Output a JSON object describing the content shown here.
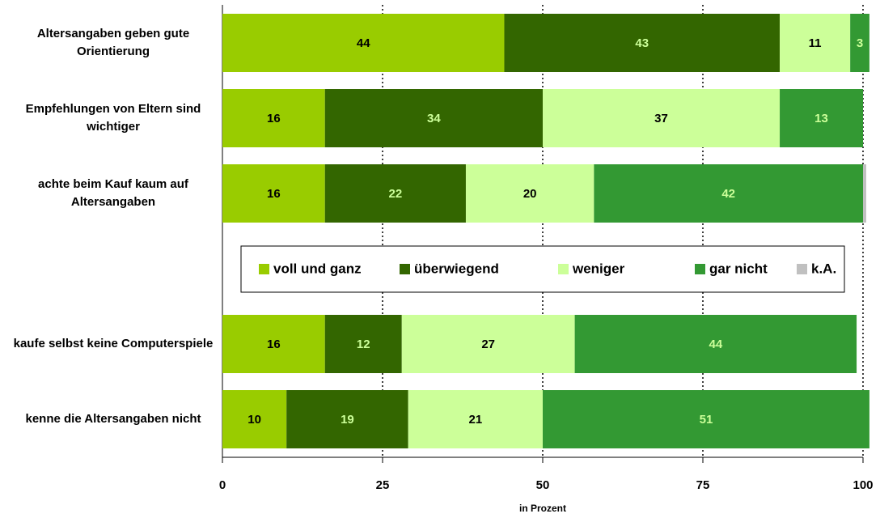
{
  "chart_data": {
    "type": "stacked_bar_horizontal",
    "categories": [
      "Altersangaben geben gute Orientierung",
      "Empfehlungen von  Eltern sind wichtiger",
      "achte beim Kauf kaum auf Altersangaben",
      "kaufe selbst keine Computerspiele",
      "kenne die Altersangaben nicht"
    ],
    "series": [
      {
        "name": "voll und ganz",
        "color": "#99cc00",
        "label_color": "#000000",
        "values": [
          44,
          16,
          16,
          16,
          10
        ]
      },
      {
        "name": "überwiegend",
        "color": "#336600",
        "label_color": "#ccff99",
        "values": [
          43,
          34,
          22,
          12,
          19
        ]
      },
      {
        "name": "weniger",
        "color": "#ccff99",
        "label_color": "#000000",
        "values": [
          11,
          37,
          20,
          27,
          21
        ]
      },
      {
        "name": "gar nicht",
        "color": "#339933",
        "label_color": "#ccff99",
        "values": [
          3,
          13,
          42,
          44,
          51
        ]
      },
      {
        "name": "k.A.",
        "color": "#c0c0c0",
        "label_color": "#000000",
        "values": [
          null,
          null,
          0.5,
          null,
          null
        ]
      }
    ],
    "xlabel": "in Prozent",
    "xlim": [
      0,
      100
    ],
    "xticks": [
      0,
      25,
      50,
      75,
      100
    ],
    "grid": true,
    "legend": "center"
  }
}
